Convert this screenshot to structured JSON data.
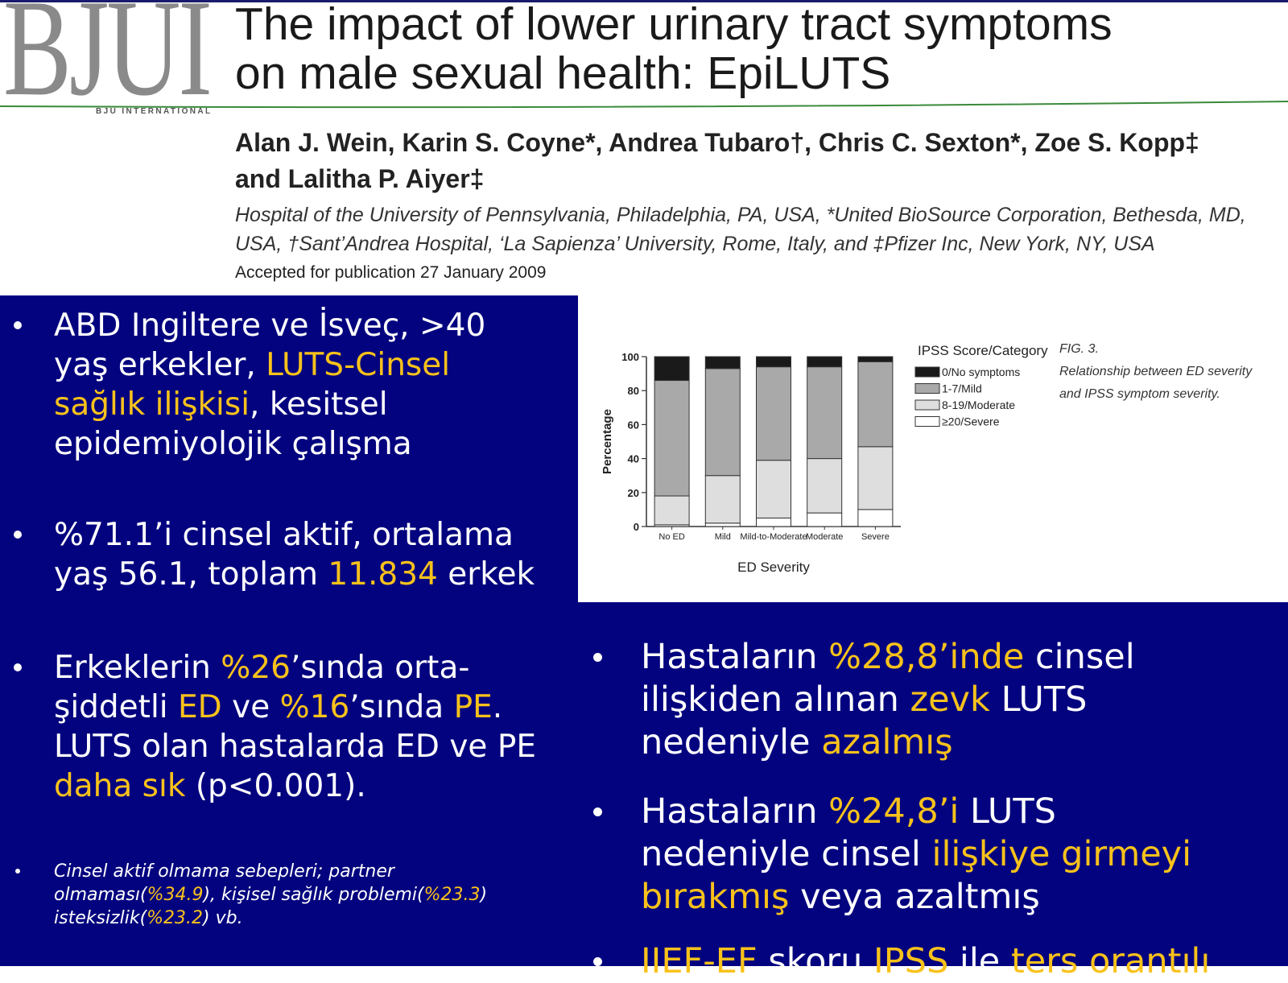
{
  "header": {
    "logo": "BJUI",
    "logo_sub": "BJU INTERNATIONAL",
    "title_lines": [
      "The impact of lower urinary tract symptoms",
      "on male sexual health: EpiLUTS"
    ],
    "authors_lines": [
      "Alan J. Wein, Karin S. Coyne*, Andrea Tubaro†, Chris C. Sexton*, Zoe S. Kopp‡",
      "and Lalitha P. Aiyer‡"
    ],
    "affiliation_lines": [
      "Hospital of the University of Pennsylvania, Philadelphia, PA, USA, *United BioSource Corporation, Bethesda, MD,",
      "USA, †Sant’Andrea Hospital, ‘La Sapienza’ University, Rome, Italy, and ‡Pfizer Inc, New York, NY, USA"
    ],
    "accepted": "Accepted for publication 27 January 2009"
  },
  "left_bullets": [
    {
      "lines": [
        [
          {
            "text": "ABD Ingiltere ve İsveç, >40",
            "highlight": false
          }
        ],
        [
          {
            "text": "yaş erkekler, ",
            "highlight": false
          },
          {
            "text": "LUTS-Cinsel",
            "highlight": true
          }
        ],
        [
          {
            "text": "sağlık ilişkisi",
            "highlight": true
          },
          {
            "text": ", kesitsel",
            "highlight": false
          }
        ],
        [
          {
            "text": "epidemiyolojik çalışma",
            "highlight": false
          }
        ]
      ]
    },
    {
      "lines": [
        [
          {
            "text": "%71.1’i cinsel aktif, ortalama",
            "highlight": false
          }
        ],
        [
          {
            "text": "yaş 56.1, toplam ",
            "highlight": false
          },
          {
            "text": "11.834",
            "highlight": true
          },
          {
            "text": " erkek",
            "highlight": false
          }
        ]
      ]
    },
    {
      "lines": [
        [
          {
            "text": "Erkeklerin ",
            "highlight": false
          },
          {
            "text": "%26",
            "highlight": true
          },
          {
            "text": "’sında orta-",
            "highlight": false
          }
        ],
        [
          {
            "text": "şiddetli ",
            "highlight": false
          },
          {
            "text": "ED",
            "highlight": true
          },
          {
            "text": " ve ",
            "highlight": false
          },
          {
            "text": "%16",
            "highlight": true
          },
          {
            "text": "’sında ",
            "highlight": false
          },
          {
            "text": "PE",
            "highlight": true
          },
          {
            "text": ".",
            "highlight": false
          }
        ],
        [
          {
            "text": "LUTS olan hastalarda ED ve PE",
            "highlight": false
          }
        ],
        [
          {
            "text": "daha sık",
            "highlight": true
          },
          {
            "text": " (p<0.001).",
            "highlight": false
          }
        ]
      ]
    },
    {
      "lines": [
        [
          {
            "text": "Cinsel aktif olmama sebepleri; partner",
            "highlight": false
          }
        ],
        [
          {
            "text": "olmaması(",
            "highlight": false
          },
          {
            "text": "%34.9",
            "highlight": true
          },
          {
            "text": "), kişisel sağlık problemi(",
            "highlight": false
          },
          {
            "text": "%23.3",
            "highlight": true
          },
          {
            "text": ")",
            "highlight": false
          }
        ],
        [
          {
            "text": "isteksizlik(",
            "highlight": false
          },
          {
            "text": "%23.2",
            "highlight": true
          },
          {
            "text": ") vb.",
            "highlight": false
          }
        ]
      ]
    }
  ],
  "right_bullets": [
    {
      "lines": [
        [
          {
            "text": "Hastaların ",
            "highlight": false
          },
          {
            "text": "%28,8’inde",
            "highlight": true
          },
          {
            "text": " cinsel",
            "highlight": false
          }
        ],
        [
          {
            "text": "ilişkiden alınan ",
            "highlight": false
          },
          {
            "text": "zevk",
            "highlight": true
          },
          {
            "text": " LUTS",
            "highlight": false
          }
        ],
        [
          {
            "text": "nedeniyle ",
            "highlight": false
          },
          {
            "text": "azalmış",
            "highlight": true
          }
        ]
      ]
    },
    {
      "lines": [
        [
          {
            "text": "Hastaların ",
            "highlight": false
          },
          {
            "text": "%24,8’i",
            "highlight": true
          },
          {
            "text": " LUTS",
            "highlight": false
          }
        ],
        [
          {
            "text": "nedeniyle cinsel ",
            "highlight": false
          },
          {
            "text": "ilişkiye girmeyi",
            "highlight": true
          }
        ],
        [
          {
            "text": "bırakmış",
            "highlight": true
          },
          {
            "text": " veya azaltmış",
            "highlight": false
          }
        ]
      ]
    },
    {
      "lines": [
        [
          {
            "text": "IIEF-EF",
            "highlight": true
          },
          {
            "text": " skoru ",
            "highlight": false
          },
          {
            "text": "IPSS",
            "highlight": true
          },
          {
            "text": " ile ",
            "highlight": false
          },
          {
            "text": "ters orantılı",
            "highlight": true
          }
        ]
      ]
    }
  ],
  "chart_data": {
    "type": "bar",
    "stacked": true,
    "caption_label": "FIG. 3.",
    "caption_lines": [
      "Relationship between ED severity",
      "and IPSS symptom severity."
    ],
    "legend_title": "IPSS Score/Category",
    "xlabel": "ED Severity",
    "ylabel": "Percentage",
    "categories": [
      "No ED",
      "Mild",
      "Mild-to-Moderate",
      "Moderate",
      "Severe"
    ],
    "series": [
      {
        "name": "0/No symptoms",
        "color": "#1a1a1a",
        "values": [
          14,
          7,
          6,
          6,
          3
        ]
      },
      {
        "name": "1-7/Mild",
        "color": "#a9a9a9",
        "values": [
          68,
          63,
          55,
          54,
          50
        ]
      },
      {
        "name": "8-19/Moderate",
        "color": "#dedede",
        "values": [
          17,
          28,
          34,
          32,
          37
        ]
      },
      {
        "name": "≥20/Severe",
        "color": "#ffffff",
        "values": [
          1,
          2,
          5,
          8,
          10
        ]
      }
    ],
    "ylim": [
      0,
      100
    ],
    "yticks": [
      0,
      20,
      40,
      60,
      80,
      100
    ]
  },
  "theme": {
    "background": "#03037f",
    "text": "#ffffff",
    "highlight": "#f9c21b"
  }
}
